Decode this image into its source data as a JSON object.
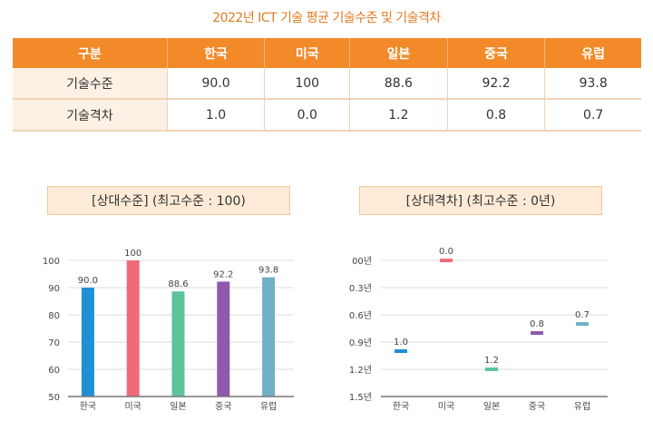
{
  "title": "2022년 ICT 기술 평균 기술수준 및 기술격차",
  "table": {
    "headers": [
      "구분",
      "한국",
      "미국",
      "일본",
      "중국",
      "유럽"
    ],
    "rows": [
      {
        "label": "기술수준",
        "values": [
          "90.0",
          "100",
          "88.6",
          "92.2",
          "93.8"
        ]
      },
      {
        "label": "기술격차",
        "values": [
          "1.0",
          "0.0",
          "1.2",
          "0.8",
          "0.7"
        ]
      }
    ]
  },
  "colors": {
    "한국": "#1f8fd6",
    "미국": "#ef6b78",
    "일본": "#5cc49a",
    "중국": "#8e5aab",
    "유럽": "#6fb0c4"
  },
  "chart_data": [
    {
      "type": "bar",
      "title": "[상대수준] (최고수준 : 100)",
      "categories": [
        "한국",
        "미국",
        "일본",
        "중국",
        "유럽"
      ],
      "values": [
        90.0,
        100,
        88.6,
        92.2,
        93.8
      ],
      "value_labels": [
        "90.0",
        "100",
        "88.6",
        "92.2",
        "93.8"
      ],
      "ylim": [
        50,
        100
      ],
      "yticks": [
        50,
        60,
        70,
        80,
        90,
        100
      ],
      "ytick_labels": [
        "50",
        "60",
        "70",
        "80",
        "90",
        "100"
      ],
      "grid": true,
      "xlabel": "",
      "ylabel": ""
    },
    {
      "type": "scatter",
      "title": "[상대격차] (최고수준 : 0년)",
      "categories": [
        "한국",
        "미국",
        "일본",
        "중국",
        "유럽"
      ],
      "values": [
        1.0,
        0.0,
        1.2,
        0.8,
        0.7
      ],
      "value_labels": [
        "1.0",
        "0.0",
        "1.2",
        "0.8",
        "0.7"
      ],
      "ylim": [
        0,
        1.5
      ],
      "inverted_y": true,
      "yticks": [
        0,
        0.3,
        0.6,
        0.9,
        1.2,
        1.5
      ],
      "ytick_labels": [
        "00년",
        "0.3년",
        "0.6년",
        "0.9년",
        "1.2년",
        "1.5년"
      ],
      "grid": true,
      "xlabel": "",
      "ylabel": ""
    }
  ]
}
